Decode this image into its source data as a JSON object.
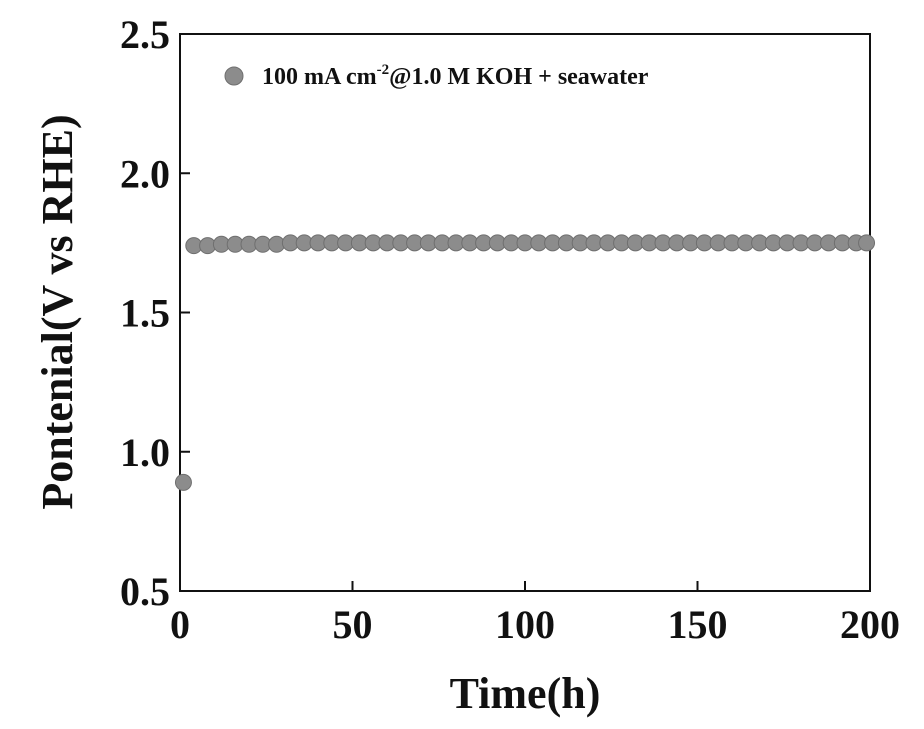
{
  "chart_data": {
    "type": "scatter",
    "xlabel": "Time(h)",
    "ylabel": "Pontenial(V vs RHE)",
    "xlim": [
      0,
      200
    ],
    "ylim": [
      0.5,
      2.5
    ],
    "x_ticks": [
      0,
      50,
      100,
      150,
      200
    ],
    "x_tick_labels": [
      "0",
      "50",
      "100",
      "150",
      "200"
    ],
    "y_ticks": [
      0.5,
      1.0,
      1.5,
      2.0,
      2.5
    ],
    "y_tick_labels": [
      "0.5",
      "1.0",
      "1.5",
      "2.0",
      "2.5"
    ],
    "legend": {
      "placement": "top-left",
      "prefix": "100 mA cm",
      "superscript": "-2",
      "suffix": "@1.0 M KOH + seawater"
    },
    "series": [
      {
        "name": "100 mA cm-2@1.0 M KOH + seawater",
        "marker_color": "#8c8c8c",
        "x": [
          1,
          4,
          8,
          12,
          16,
          20,
          24,
          28,
          32,
          36,
          40,
          44,
          48,
          52,
          56,
          60,
          64,
          68,
          72,
          76,
          80,
          84,
          88,
          92,
          96,
          100,
          104,
          108,
          112,
          116,
          120,
          124,
          128,
          132,
          136,
          140,
          144,
          148,
          152,
          156,
          160,
          164,
          168,
          172,
          176,
          180,
          184,
          188,
          192,
          196,
          199
        ],
        "y": [
          0.89,
          1.74,
          1.74,
          1.745,
          1.745,
          1.745,
          1.745,
          1.745,
          1.75,
          1.75,
          1.75,
          1.75,
          1.75,
          1.75,
          1.75,
          1.75,
          1.75,
          1.75,
          1.75,
          1.75,
          1.75,
          1.75,
          1.75,
          1.75,
          1.75,
          1.75,
          1.75,
          1.75,
          1.75,
          1.75,
          1.75,
          1.75,
          1.75,
          1.75,
          1.75,
          1.75,
          1.75,
          1.75,
          1.75,
          1.75,
          1.75,
          1.75,
          1.75,
          1.75,
          1.75,
          1.75,
          1.75,
          1.75,
          1.75,
          1.75,
          1.75
        ]
      }
    ]
  }
}
